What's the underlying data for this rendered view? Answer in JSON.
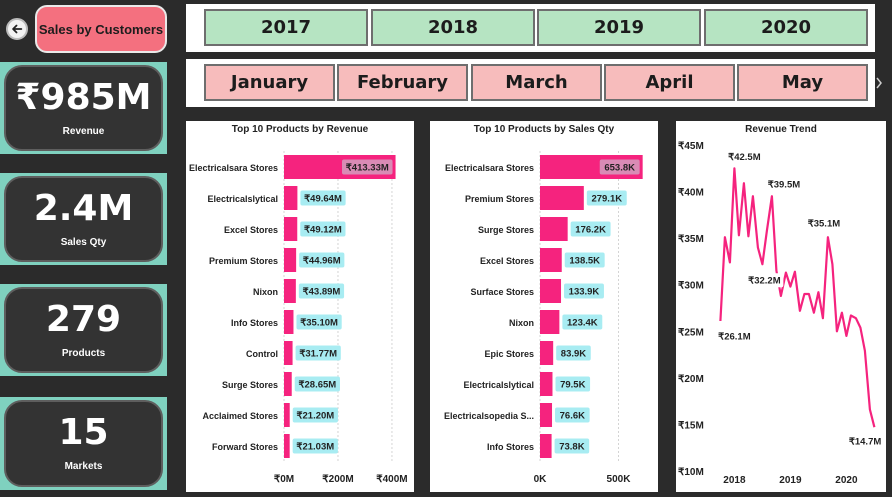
{
  "header": {
    "title": "Sales by Customers"
  },
  "kpis": [
    {
      "value": "₹985M",
      "label": "Revenue"
    },
    {
      "value": "2.4M",
      "label": "Sales Qty"
    },
    {
      "value": "279",
      "label": "Products"
    },
    {
      "value": "15",
      "label": "Markets"
    }
  ],
  "years": [
    "2017",
    "2018",
    "2019",
    "2020"
  ],
  "months": [
    "January",
    "February",
    "March",
    "April",
    "May"
  ],
  "colors": {
    "accent": "#f5237e",
    "label_bg": "#a8ecf2",
    "year_bg": "#b6e4c2",
    "month_bg": "#f7bcbc",
    "kpi_band": "#7fd1bf",
    "title_pill": "#f4707f"
  },
  "icons": {
    "back": "back-arrow-icon",
    "next": "chevron-right-icon"
  },
  "chart_data": [
    {
      "type": "bar",
      "orientation": "horizontal",
      "title": "Top 10 Products by Revenue",
      "categories": [
        "Electricalsara Stores",
        "Electricalslytical",
        "Excel Stores",
        "Premium Stores",
        "Nixon",
        "Info Stores",
        "Control",
        "Surge Stores",
        "Acclaimed Stores",
        "Forward Stores"
      ],
      "values": [
        413.33,
        49.64,
        49.12,
        44.96,
        43.89,
        35.1,
        31.77,
        28.65,
        21.2,
        21.03
      ],
      "labels": [
        "₹413.33M",
        "₹49.64M",
        "₹49.12M",
        "₹44.96M",
        "₹43.89M",
        "₹35.10M",
        "₹31.77M",
        "₹28.65M",
        "₹21.20M",
        "₹21.03M"
      ],
      "xticks": [
        0,
        200,
        400
      ],
      "xtick_labels": [
        "₹0M",
        "₹200M",
        "₹400M"
      ],
      "xlim": [
        0,
        430
      ],
      "grid": true
    },
    {
      "type": "bar",
      "orientation": "horizontal",
      "title": "Top 10 Products by Sales Qty",
      "categories": [
        "Electricalsara Stores",
        "Premium Stores",
        "Surge Stores",
        "Excel Stores",
        "Surface Stores",
        "Nixon",
        "Epic Stores",
        "Electricalslytical",
        "Electricalsopedia S...",
        "Info Stores"
      ],
      "values": [
        653.8,
        279.1,
        176.2,
        138.5,
        133.9,
        123.4,
        83.9,
        79.5,
        76.6,
        73.8
      ],
      "labels": [
        "653.8K",
        "279.1K",
        "176.2K",
        "138.5K",
        "133.9K",
        "123.4K",
        "83.9K",
        "79.5K",
        "76.6K",
        "73.8K"
      ],
      "xticks": [
        0,
        500
      ],
      "xtick_labels": [
        "0K",
        "500K"
      ],
      "xlim": [
        0,
        680
      ],
      "grid": true
    },
    {
      "type": "line",
      "title": "Revenue Trend",
      "x": [
        2017.75,
        2017.83,
        2017.92,
        2018.0,
        2018.08,
        2018.17,
        2018.25,
        2018.33,
        2018.42,
        2018.5,
        2018.58,
        2018.67,
        2018.75,
        2018.83,
        2018.92,
        2019.0,
        2019.08,
        2019.17,
        2019.25,
        2019.33,
        2019.42,
        2019.5,
        2019.58,
        2019.67,
        2019.75,
        2019.83,
        2019.92,
        2020.0,
        2020.08,
        2020.17,
        2020.25,
        2020.33,
        2020.42,
        2020.5
      ],
      "y": [
        26.1,
        35.1,
        32.4,
        42.5,
        35.3,
        40.9,
        35.2,
        39.5,
        34.0,
        32.2,
        35.8,
        39.5,
        31.5,
        28.8,
        31.3,
        29.8,
        31.4,
        27.2,
        29.0,
        29.0,
        27.0,
        29.2,
        26.4,
        35.1,
        32.2,
        25.0,
        27.0,
        24.5,
        26.7,
        26.4,
        25.4,
        22.9,
        16.6,
        14.7
      ],
      "point_labels": [
        {
          "x": 2017.75,
          "y": 26.1,
          "text": "₹26.1M"
        },
        {
          "x": 2018.0,
          "y": 42.5,
          "text": "₹42.5M"
        },
        {
          "x": 2018.67,
          "y": 39.5,
          "text": "₹39.5M"
        },
        {
          "x": 2018.5,
          "y": 32.2,
          "text": "₹32.2M"
        },
        {
          "x": 2019.67,
          "y": 35.1,
          "text": "₹35.1M"
        },
        {
          "x": 2020.5,
          "y": 14.7,
          "text": "₹14.7M"
        }
      ],
      "yticks": [
        10,
        15,
        20,
        25,
        30,
        35,
        40,
        45
      ],
      "ytick_labels": [
        "₹10M",
        "₹15M",
        "₹20M",
        "₹25M",
        "₹30M",
        "₹35M",
        "₹40M",
        "₹45M"
      ],
      "xticks": [
        2018,
        2019,
        2020
      ],
      "xtick_labels": [
        "2018",
        "2019",
        "2020"
      ],
      "ylim": [
        10,
        45
      ],
      "xlim": [
        2017.6,
        2020.6
      ]
    }
  ]
}
